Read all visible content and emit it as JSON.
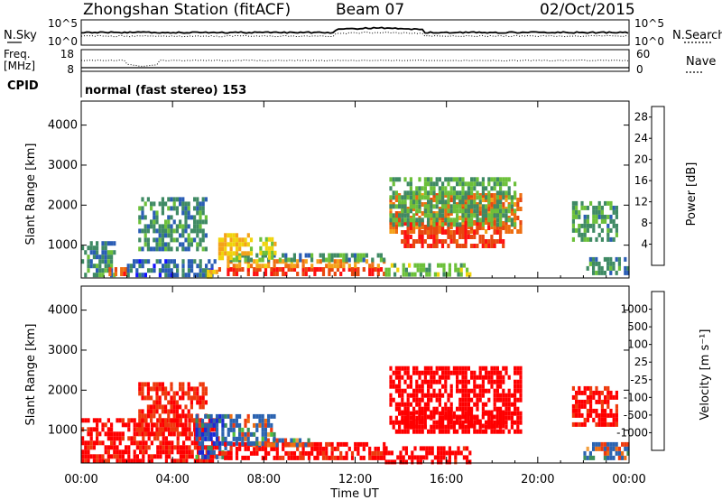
{
  "header": {
    "station": "Zhongshan Station (fitACF)",
    "beam": "Beam 07",
    "date": "02/Oct/2015"
  },
  "summary_panel": {
    "left_label_top": "N.Sky",
    "left_ticks_top": [
      "10^5",
      "10^0"
    ],
    "right_ticks_top": [
      "10^5",
      "10^0"
    ],
    "right_label_top": "N.Search",
    "left_label_freq": [
      "Freq.",
      "[MHz]"
    ],
    "left_ticks_freq": [
      "18",
      "8"
    ],
    "right_ticks_nave": [
      "60",
      "0"
    ],
    "right_label_nave": "Nave",
    "cpid_label": "CPID",
    "cpid_text": "normal (fast stereo) 153"
  },
  "colors": {
    "power_scale": [
      "#1212ff",
      "#2a5db5",
      "#3f8a64",
      "#6cc03a",
      "#f0d40c",
      "#f4a21a",
      "#ee6d10",
      "#e8470f",
      "#ff1010"
    ],
    "velocity_scale": [
      "#ff0000",
      "#ee3a0e",
      "#f06e12",
      "#f2a040",
      "#c8c8c8",
      "#4fc03a",
      "#3b8e5a",
      "#2b63b0",
      "#1a2ad8"
    ]
  },
  "chart_data": [
    {
      "type": "heatmap",
      "title": "",
      "xlabel": "",
      "ylabel": "Slant Range [km]",
      "x_ticks": [
        "00:00",
        "04:00",
        "08:00",
        "12:00",
        "16:00",
        "20:00",
        "00:00"
      ],
      "y_ticks": [
        "1000",
        "2000",
        "3000",
        "4000"
      ],
      "xlim_hours": [
        0,
        24
      ],
      "ylim_km": [
        180,
        4600
      ],
      "colorbar": {
        "label": "Power [dB]",
        "ticks": [
          "4",
          "8",
          "12",
          "16",
          "20",
          "24",
          "28"
        ],
        "range": [
          0,
          30
        ]
      },
      "regions": [
        {
          "t0": 0.0,
          "t1": 1.5,
          "r0": 200,
          "r1": 1100,
          "value": 8
        },
        {
          "t0": 1.2,
          "t1": 2.0,
          "r0": 300,
          "r1": 450,
          "value": 24
        },
        {
          "t0": 2.0,
          "t1": 5.8,
          "r0": 250,
          "r1": 650,
          "value": 6
        },
        {
          "t0": 2.5,
          "t1": 5.5,
          "r0": 900,
          "r1": 2200,
          "value": 8
        },
        {
          "t0": 5.5,
          "t1": 6.0,
          "r0": 250,
          "r1": 500,
          "value": 16
        },
        {
          "t0": 6.0,
          "t1": 13.3,
          "r0": 250,
          "r1": 450,
          "value": 27
        },
        {
          "t0": 6.0,
          "t1": 13.3,
          "r0": 450,
          "r1": 650,
          "value": 19
        },
        {
          "t0": 6.5,
          "t1": 13.3,
          "r0": 650,
          "r1": 800,
          "value": 9
        },
        {
          "t0": 6.0,
          "t1": 7.5,
          "r0": 650,
          "r1": 1300,
          "value": 16
        },
        {
          "t0": 7.8,
          "t1": 8.5,
          "r0": 700,
          "r1": 1200,
          "value": 14
        },
        {
          "t0": 13.5,
          "t1": 19.2,
          "r0": 1300,
          "r1": 2300,
          "value": 22
        },
        {
          "t0": 14.0,
          "t1": 18.5,
          "r0": 1000,
          "r1": 1600,
          "value": 26
        },
        {
          "t0": 13.5,
          "t1": 19.0,
          "r0": 1500,
          "r1": 2700,
          "value": 10
        },
        {
          "t0": 13.3,
          "t1": 17.0,
          "r0": 250,
          "r1": 550,
          "value": 12
        },
        {
          "t0": 21.5,
          "t1": 23.5,
          "r0": 1100,
          "r1": 2100,
          "value": 9
        },
        {
          "t0": 22.0,
          "t1": 24.0,
          "r0": 250,
          "r1": 700,
          "value": 8
        }
      ]
    },
    {
      "type": "heatmap",
      "title": "",
      "xlabel": "Time UT",
      "ylabel": "Slant Range [km]",
      "x_ticks": [
        "00:00",
        "04:00",
        "08:00",
        "12:00",
        "16:00",
        "20:00",
        "00:00"
      ],
      "y_ticks": [
        "1000",
        "2000",
        "3000",
        "4000"
      ],
      "xlim_hours": [
        0,
        24
      ],
      "ylim_km": [
        180,
        4600
      ],
      "colorbar": {
        "label": "Velocity [m s⁻¹]",
        "ticks": [
          "1000",
          "500",
          "100",
          "25",
          "-25",
          "-100",
          "-500",
          "-1000"
        ],
        "range": [
          -1000,
          1000
        ]
      },
      "regions": [
        {
          "t0": 0.0,
          "t1": 6.0,
          "r0": 200,
          "r1": 1300,
          "value": -300
        },
        {
          "t0": 2.5,
          "t1": 5.5,
          "r0": 900,
          "r1": 2200,
          "value": -200
        },
        {
          "t0": 5.0,
          "t1": 6.5,
          "r0": 300,
          "r1": 1400,
          "value": 150
        },
        {
          "t0": 6.0,
          "t1": 13.3,
          "r0": 250,
          "r1": 700,
          "value": -300
        },
        {
          "t0": 7.5,
          "t1": 10.0,
          "r0": 600,
          "r1": 800,
          "value": 0
        },
        {
          "t0": 6.5,
          "t1": 8.5,
          "r0": 700,
          "r1": 1400,
          "value": 60
        },
        {
          "t0": 13.5,
          "t1": 19.2,
          "r0": 1000,
          "r1": 2600,
          "value": -400
        },
        {
          "t0": 14.0,
          "t1": 18.5,
          "r0": 1100,
          "r1": 1500,
          "value": -800
        },
        {
          "t0": 13.3,
          "t1": 17.0,
          "r0": 250,
          "r1": 600,
          "value": -350
        },
        {
          "t0": 21.5,
          "t1": 23.5,
          "r0": 1100,
          "r1": 2100,
          "value": -300
        },
        {
          "t0": 22.0,
          "t1": 24.0,
          "r0": 250,
          "r1": 700,
          "value": 60
        }
      ]
    }
  ]
}
